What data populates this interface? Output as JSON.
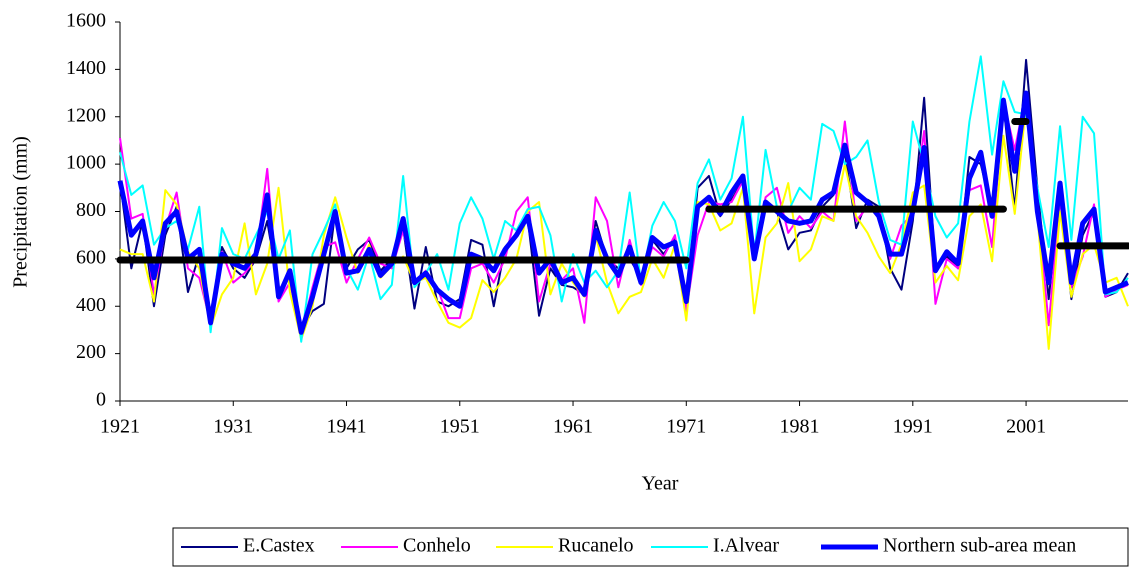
{
  "chart_data": {
    "type": "line",
    "x_label": "Year",
    "y_label": "Precipitation (mm)",
    "xlim": [
      1921,
      2010
    ],
    "ylim": [
      0,
      1600
    ],
    "xticks": [
      1921,
      1931,
      1941,
      1951,
      1961,
      1971,
      1981,
      1991,
      2001
    ],
    "yticks": [
      0,
      200,
      400,
      600,
      800,
      1000,
      1200,
      1400,
      1600
    ],
    "x": [
      1921,
      1922,
      1923,
      1924,
      1925,
      1926,
      1927,
      1928,
      1929,
      1930,
      1931,
      1932,
      1933,
      1934,
      1935,
      1936,
      1937,
      1938,
      1939,
      1940,
      1941,
      1942,
      1943,
      1944,
      1945,
      1946,
      1947,
      1948,
      1949,
      1950,
      1951,
      1952,
      1953,
      1954,
      1955,
      1956,
      1957,
      1958,
      1959,
      1960,
      1961,
      1962,
      1963,
      1964,
      1965,
      1966,
      1967,
      1968,
      1969,
      1970,
      1971,
      1972,
      1973,
      1974,
      1975,
      1976,
      1977,
      1978,
      1979,
      1980,
      1981,
      1982,
      1983,
      1984,
      1985,
      1986,
      1987,
      1988,
      1989,
      1990,
      1991,
      1992,
      1993,
      1994,
      1995,
      1996,
      1997,
      1998,
      1999,
      2000,
      2001,
      2002,
      2003,
      2004,
      2005,
      2006,
      2007,
      2008,
      2009,
      2010
    ],
    "series": [
      {
        "name": "E.Castex",
        "color": "#000080",
        "width": 2,
        "values": [
          930,
          560,
          760,
          400,
          700,
          820,
          460,
          620,
          320,
          650,
          560,
          520,
          600,
          760,
          470,
          520,
          300,
          380,
          410,
          800,
          560,
          640,
          680,
          550,
          600,
          730,
          390,
          650,
          420,
          400,
          430,
          680,
          660,
          400,
          650,
          700,
          770,
          360,
          560,
          490,
          480,
          450,
          760,
          600,
          560,
          600,
          520,
          680,
          620,
          690,
          410,
          900,
          950,
          780,
          850,
          930,
          620,
          830,
          800,
          640,
          710,
          720,
          820,
          870,
          1050,
          730,
          850,
          820,
          560,
          470,
          760,
          1280,
          560,
          610,
          560,
          1030,
          1000,
          800,
          1250,
          810,
          1440,
          900,
          430,
          900,
          430,
          700,
          800,
          440,
          460,
          540
        ]
      },
      {
        "name": "Conhelo",
        "color": "#ff00ff",
        "width": 2,
        "values": [
          1110,
          770,
          790,
          450,
          730,
          880,
          560,
          520,
          330,
          630,
          500,
          540,
          600,
          980,
          420,
          500,
          290,
          480,
          650,
          670,
          500,
          600,
          690,
          580,
          560,
          720,
          500,
          550,
          480,
          350,
          350,
          560,
          580,
          500,
          600,
          800,
          860,
          420,
          580,
          510,
          560,
          330,
          860,
          760,
          480,
          680,
          490,
          650,
          610,
          700,
          380,
          700,
          840,
          830,
          840,
          930,
          600,
          860,
          900,
          710,
          780,
          730,
          800,
          760,
          1180,
          760,
          820,
          820,
          600,
          740,
          790,
          1140,
          410,
          600,
          560,
          890,
          910,
          650,
          1270,
          1060,
          1300,
          830,
          320,
          850,
          480,
          610,
          830,
          440,
          470,
          490
        ]
      },
      {
        "name": "Rucanelo",
        "color": "#ffff00",
        "width": 2,
        "values": [
          640,
          620,
          620,
          420,
          890,
          830,
          630,
          560,
          310,
          450,
          520,
          750,
          450,
          580,
          900,
          460,
          260,
          400,
          700,
          860,
          690,
          540,
          660,
          520,
          570,
          610,
          500,
          520,
          420,
          330,
          310,
          350,
          510,
          460,
          520,
          600,
          800,
          840,
          450,
          580,
          500,
          440,
          700,
          500,
          370,
          440,
          460,
          600,
          520,
          660,
          340,
          840,
          830,
          720,
          750,
          900,
          370,
          690,
          750,
          920,
          590,
          640,
          780,
          760,
          1000,
          780,
          710,
          610,
          540,
          660,
          880,
          910,
          500,
          570,
          510,
          780,
          830,
          590,
          1120,
          790,
          1250,
          780,
          220,
          800,
          440,
          620,
          660,
          500,
          520,
          400
        ]
      },
      {
        "name": "I.Alvear",
        "color": "#00ffff",
        "width": 2,
        "values": [
          1050,
          870,
          910,
          660,
          730,
          760,
          640,
          820,
          290,
          730,
          620,
          600,
          700,
          800,
          600,
          720,
          250,
          620,
          720,
          830,
          560,
          470,
          620,
          430,
          490,
          950,
          480,
          540,
          620,
          470,
          750,
          860,
          770,
          600,
          760,
          720,
          810,
          820,
          700,
          420,
          620,
          500,
          550,
          480,
          550,
          880,
          500,
          740,
          840,
          760,
          560,
          920,
          1020,
          850,
          940,
          1200,
          620,
          1060,
          820,
          800,
          900,
          850,
          1170,
          1140,
          1000,
          1030,
          1100,
          840,
          680,
          660,
          1180,
          1000,
          780,
          690,
          750,
          1180,
          1455,
          1040,
          1350,
          1220,
          1210,
          900,
          650,
          1160,
          680,
          1200,
          1130,
          450,
          460,
          520
        ]
      },
      {
        "name": "Northern sub-area mean",
        "color": "#0000ff",
        "width": 5,
        "values": [
          930,
          700,
          760,
          520,
          750,
          800,
          600,
          640,
          330,
          620,
          580,
          560,
          620,
          870,
          440,
          550,
          290,
          440,
          620,
          800,
          540,
          550,
          640,
          530,
          580,
          770,
          500,
          540,
          470,
          430,
          400,
          620,
          600,
          550,
          640,
          700,
          780,
          540,
          600,
          500,
          520,
          450,
          720,
          600,
          530,
          650,
          500,
          690,
          650,
          670,
          420,
          820,
          860,
          790,
          880,
          950,
          600,
          840,
          800,
          760,
          750,
          760,
          850,
          880,
          1080,
          880,
          840,
          780,
          620,
          620,
          800,
          1070,
          550,
          630,
          580,
          940,
          1050,
          780,
          1270,
          970,
          1300,
          800,
          500,
          920,
          500,
          750,
          810,
          460,
          480,
          500
        ]
      }
    ],
    "mean_segments": [
      {
        "x": [
          1921,
          1971
        ],
        "y": [
          595,
          595
        ]
      },
      {
        "x": [
          1973,
          1999
        ],
        "y": [
          810,
          810
        ]
      },
      {
        "x": [
          2000,
          2001
        ],
        "y": [
          1180,
          1180
        ]
      },
      {
        "x": [
          2004,
          2010
        ],
        "y": [
          655,
          655
        ]
      }
    ],
    "segment_color": "#000000"
  }
}
